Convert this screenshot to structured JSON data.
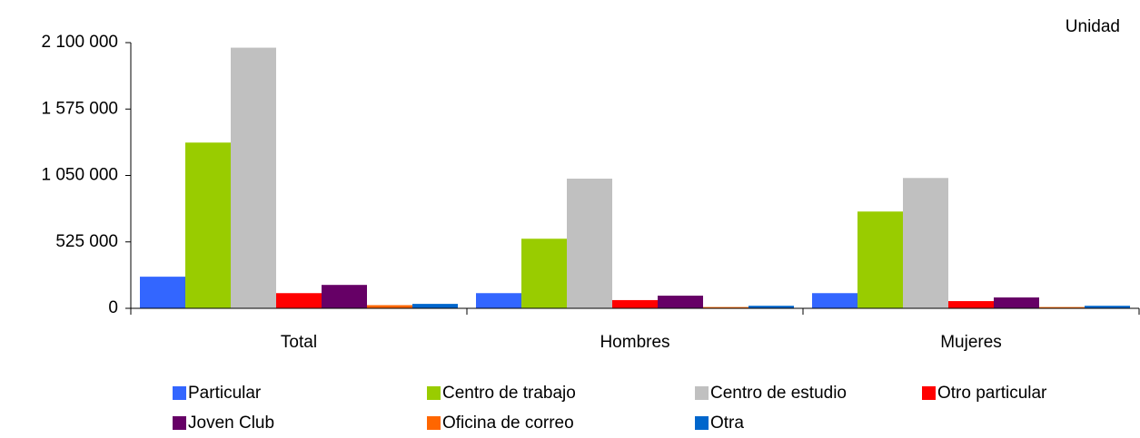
{
  "chart_data": {
    "type": "bar",
    "y_label": "Unidad",
    "categories": [
      "Total",
      "Hombres",
      "Mujeres"
    ],
    "series": [
      {
        "name": "Particular",
        "color": "#3366ff",
        "values": [
          250000,
          120000,
          120000
        ]
      },
      {
        "name": "Centro de trabajo",
        "color": "#99cc00",
        "values": [
          1310000,
          550000,
          765000
        ]
      },
      {
        "name": "Centro de estudio",
        "color": "#c0c0c0",
        "values": [
          2060000,
          1025000,
          1030000
        ]
      },
      {
        "name": "Otro particular",
        "color": "#ff0000",
        "values": [
          120000,
          65000,
          57000
        ]
      },
      {
        "name": "Joven Club",
        "color": "#660066",
        "values": [
          185000,
          100000,
          86000
        ]
      },
      {
        "name": "Oficina de correo",
        "color": "#ff6600",
        "values": [
          25000,
          10000,
          10000
        ]
      },
      {
        "name": "Otra",
        "color": "#0066cc",
        "values": [
          35000,
          20000,
          20000
        ]
      }
    ],
    "ylim": [
      0,
      2100000
    ],
    "yticks": [
      0,
      {
        "value": 525000,
        "label": "525 000"
      },
      {
        "value": 1050000,
        "label": "1 050 000"
      },
      {
        "value": 1575000,
        "label": "1 575 000"
      },
      {
        "value": 2100000,
        "label": "2 100 000"
      }
    ]
  }
}
